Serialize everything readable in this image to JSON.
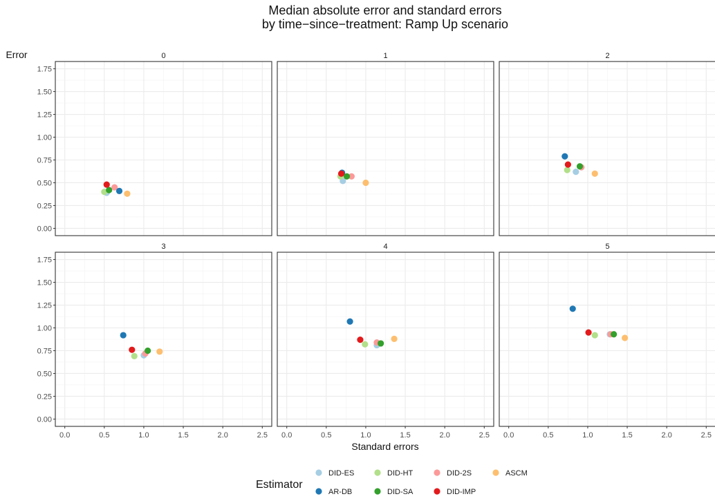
{
  "chart_data": {
    "type": "scatter",
    "title": "Median absolute error and standard errors",
    "subtitle": "by time−since−treatment: Ramp Up scenario",
    "xlabel": "Standard errors",
    "ylabel": "Error",
    "xlim": [
      -0.12,
      2.62
    ],
    "ylim": [
      -0.08,
      1.83
    ],
    "xticks": [
      "0.0",
      "0.5",
      "1.0",
      "1.5",
      "2.0",
      "2.5"
    ],
    "yticks": [
      "0.00",
      "0.25",
      "0.50",
      "0.75",
      "1.00",
      "1.25",
      "1.50",
      "1.75"
    ],
    "xtick_values": [
      0,
      0.5,
      1,
      1.5,
      2,
      2.5
    ],
    "ytick_values": [
      0,
      0.25,
      0.5,
      0.75,
      1,
      1.25,
      1.5,
      1.75
    ],
    "grid": true,
    "legend_title": "Estimator",
    "legend_position": "bottom",
    "series": [
      {
        "name": "DID-ES",
        "color": "#a6cee3"
      },
      {
        "name": "DID-HT",
        "color": "#b2df8a"
      },
      {
        "name": "DID-2S",
        "color": "#fb9a99"
      },
      {
        "name": "ASCM",
        "color": "#fdbf6f"
      },
      {
        "name": "AR-DB",
        "color": "#1f78b4"
      },
      {
        "name": "DID-SA",
        "color": "#33a02c"
      },
      {
        "name": "DID-IMP",
        "color": "#e31a1c"
      }
    ],
    "panels": [
      {
        "label": "0",
        "points": {
          "DID-ES": [
            0.53,
            0.39
          ],
          "DID-HT": [
            0.5,
            0.4
          ],
          "DID-2S": [
            0.63,
            0.45
          ],
          "ASCM": [
            0.79,
            0.38
          ],
          "AR-DB": [
            0.69,
            0.41
          ],
          "DID-SA": [
            0.56,
            0.42
          ],
          "DID-IMP": [
            0.53,
            0.48
          ]
        }
      },
      {
        "label": "1",
        "points": {
          "DID-ES": [
            0.71,
            0.52
          ],
          "DID-HT": [
            0.68,
            0.57
          ],
          "DID-2S": [
            0.82,
            0.57
          ],
          "ASCM": [
            1.0,
            0.5
          ],
          "AR-DB": [
            0.7,
            0.61
          ],
          "DID-SA": [
            0.76,
            0.57
          ],
          "DID-IMP": [
            0.69,
            0.6
          ]
        }
      },
      {
        "label": "2",
        "points": {
          "DID-ES": [
            0.85,
            0.62
          ],
          "DID-HT": [
            0.74,
            0.64
          ],
          "DID-2S": [
            0.92,
            0.67
          ],
          "ASCM": [
            1.09,
            0.6
          ],
          "AR-DB": [
            0.71,
            0.79
          ],
          "DID-SA": [
            0.9,
            0.68
          ],
          "DID-IMP": [
            0.75,
            0.7
          ]
        }
      },
      {
        "label": "3",
        "points": {
          "DID-ES": [
            1.0,
            0.7
          ],
          "DID-HT": [
            0.88,
            0.69
          ],
          "DID-2S": [
            1.02,
            0.72
          ],
          "ASCM": [
            1.2,
            0.74
          ],
          "AR-DB": [
            0.74,
            0.92
          ],
          "DID-SA": [
            1.05,
            0.75
          ],
          "DID-IMP": [
            0.85,
            0.76
          ]
        }
      },
      {
        "label": "4",
        "points": {
          "DID-ES": [
            1.14,
            0.81
          ],
          "DID-HT": [
            0.99,
            0.82
          ],
          "DID-2S": [
            1.14,
            0.84
          ],
          "ASCM": [
            1.36,
            0.88
          ],
          "AR-DB": [
            0.8,
            1.07
          ],
          "DID-SA": [
            1.19,
            0.83
          ],
          "DID-IMP": [
            0.93,
            0.87
          ]
        }
      },
      {
        "label": "5",
        "points": {
          "DID-ES": [
            1.28,
            0.93
          ],
          "DID-HT": [
            1.09,
            0.92
          ],
          "DID-2S": [
            1.29,
            0.93
          ],
          "ASCM": [
            1.47,
            0.89
          ],
          "AR-DB": [
            0.81,
            1.21
          ],
          "DID-SA": [
            1.33,
            0.93
          ],
          "DID-IMP": [
            1.01,
            0.95
          ]
        }
      }
    ]
  }
}
